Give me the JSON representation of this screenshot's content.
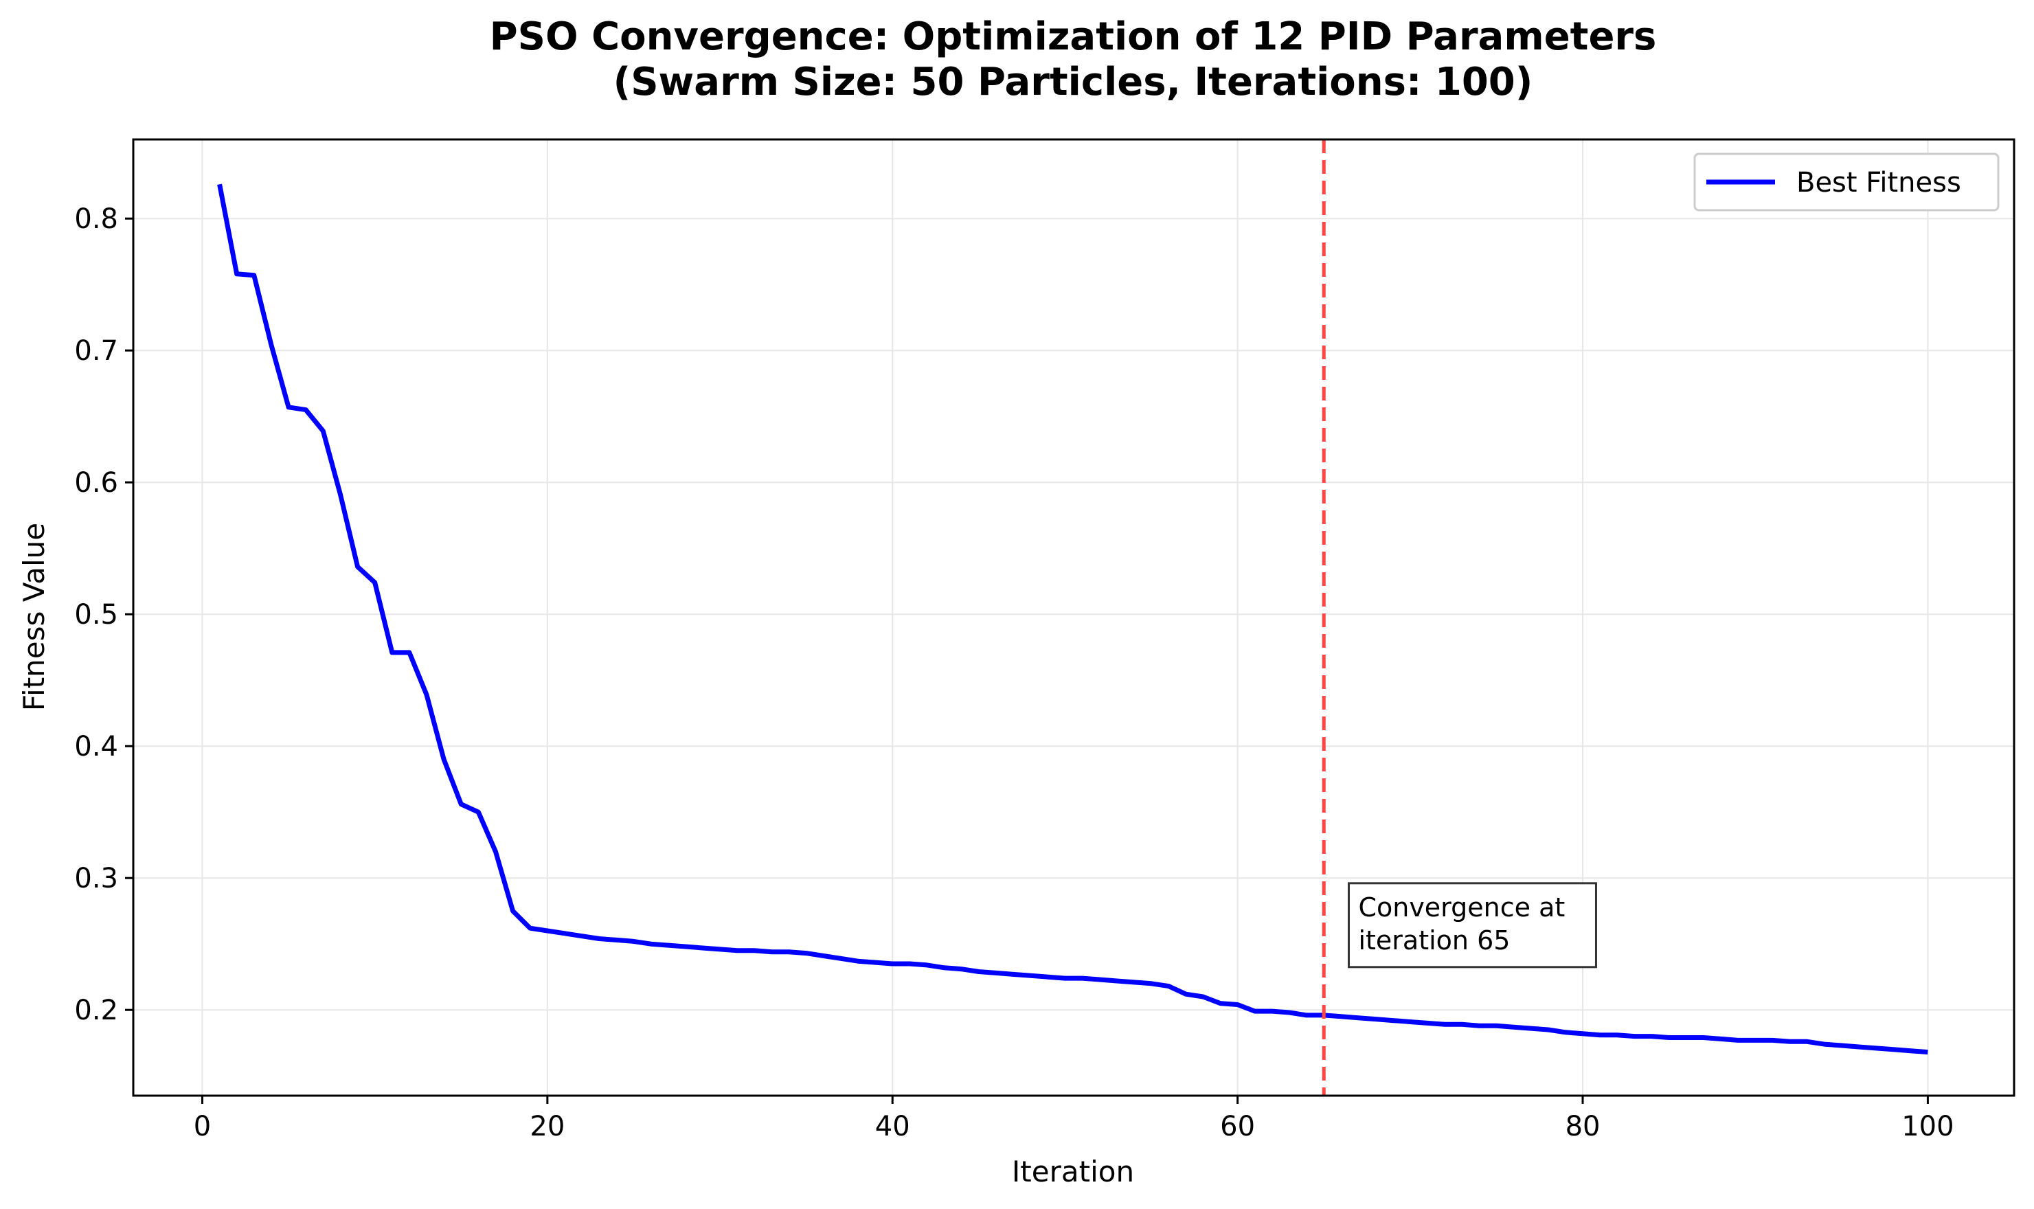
{
  "chart_data": {
    "type": "line",
    "title": "PSO Convergence: Optimization of 12 PID Parameters",
    "subtitle": "(Swarm Size: 50 Particles, Iterations: 100)",
    "xlabel": "Iteration",
    "ylabel": "Fitness Value",
    "xlim": [
      -4,
      105
    ],
    "ylim": [
      0.135,
      0.86
    ],
    "xticks": [
      0,
      20,
      40,
      60,
      80,
      100
    ],
    "yticks": [
      0.2,
      0.3,
      0.4,
      0.5,
      0.6,
      0.7,
      0.8
    ],
    "grid": true,
    "legend_position": "top-right",
    "series": [
      {
        "name": "Best Fitness",
        "color": "#0000ff",
        "x": [
          1,
          2,
          3,
          4,
          5,
          6,
          7,
          8,
          9,
          10,
          11,
          12,
          13,
          14,
          15,
          16,
          17,
          18,
          19,
          20,
          21,
          22,
          23,
          24,
          25,
          26,
          27,
          28,
          29,
          30,
          31,
          32,
          33,
          34,
          35,
          36,
          37,
          38,
          39,
          40,
          41,
          42,
          43,
          44,
          45,
          46,
          47,
          48,
          49,
          50,
          51,
          52,
          53,
          54,
          55,
          56,
          57,
          58,
          59,
          60,
          61,
          62,
          63,
          64,
          65,
          66,
          67,
          68,
          69,
          70,
          71,
          72,
          73,
          74,
          75,
          76,
          77,
          78,
          79,
          80,
          81,
          82,
          83,
          84,
          85,
          86,
          87,
          88,
          89,
          90,
          91,
          92,
          93,
          94,
          95,
          96,
          97,
          98,
          99,
          100
        ],
        "y": [
          0.826,
          0.758,
          0.757,
          0.704,
          0.657,
          0.655,
          0.639,
          0.591,
          0.536,
          0.524,
          0.471,
          0.471,
          0.439,
          0.39,
          0.356,
          0.35,
          0.32,
          0.275,
          0.262,
          0.26,
          0.258,
          0.256,
          0.254,
          0.253,
          0.252,
          0.25,
          0.249,
          0.248,
          0.247,
          0.246,
          0.245,
          0.245,
          0.244,
          0.244,
          0.243,
          0.241,
          0.239,
          0.237,
          0.236,
          0.235,
          0.235,
          0.234,
          0.232,
          0.231,
          0.229,
          0.228,
          0.227,
          0.226,
          0.225,
          0.224,
          0.224,
          0.223,
          0.222,
          0.221,
          0.22,
          0.218,
          0.212,
          0.21,
          0.205,
          0.204,
          0.199,
          0.199,
          0.198,
          0.196,
          0.196,
          0.195,
          0.194,
          0.193,
          0.192,
          0.191,
          0.19,
          0.189,
          0.189,
          0.188,
          0.188,
          0.187,
          0.186,
          0.185,
          0.183,
          0.182,
          0.181,
          0.181,
          0.18,
          0.18,
          0.179,
          0.179,
          0.179,
          0.178,
          0.177,
          0.177,
          0.177,
          0.176,
          0.176,
          0.174,
          0.173,
          0.172,
          0.171,
          0.17,
          0.169,
          0.168
        ]
      }
    ],
    "vline": {
      "x": 65,
      "color": "#ff4444",
      "style": "dashed"
    },
    "annotation": {
      "lines": [
        "Convergence at",
        "iteration 65"
      ],
      "x": 67,
      "y": 0.27
    }
  }
}
